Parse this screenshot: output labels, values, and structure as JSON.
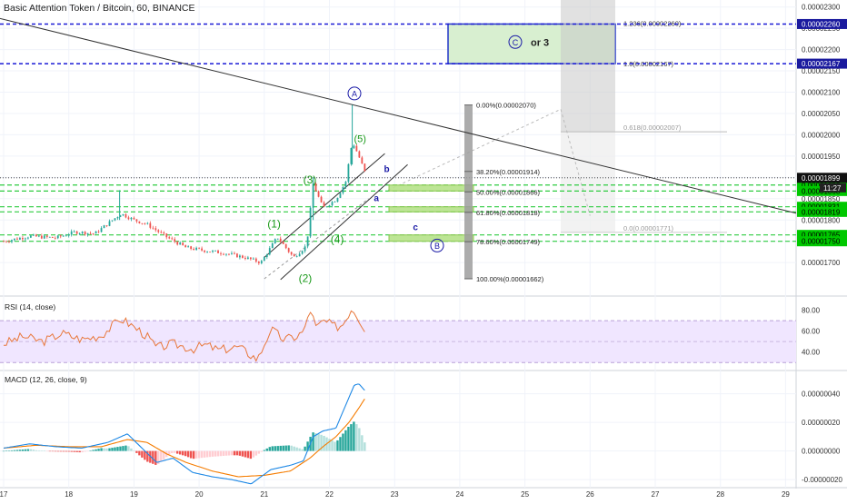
{
  "header": {
    "title": "Basic Attention Token / Bitcoin, 60, BINANCE"
  },
  "colors": {
    "up": "#26a69a",
    "down": "#ef5350",
    "wave": "#1a9a1a",
    "navy": "#1a1aa6",
    "dash_blue": "#1a1ad6",
    "dash_green": "#2ecc40",
    "rsi": "#e8773a",
    "macd": "#1e88e5",
    "signal": "#f57c00",
    "label_green": "#00c800"
  },
  "chart_data": [
    {
      "type": "candlestick",
      "title": "Basic Attention Token / Bitcoin, 60, BINANCE",
      "ylim": [
        1.63e-05,
        2.31e-05
      ],
      "x_ticks": [
        "17",
        "18",
        "19",
        "20",
        "21",
        "22",
        "23",
        "24",
        "25",
        "26",
        "27",
        "28",
        "29"
      ],
      "y_ticks": [
        "0.00002300",
        "0.00002250",
        "0.00002200",
        "0.00002150",
        "0.00002100",
        "0.00002050",
        "0.00002000",
        "0.00001950",
        "0.00001900",
        "0.00001850",
        "0.00001800",
        "0.00001750",
        "0.00001700"
      ],
      "series": [
        {
          "key": "close",
          "approx_close_path": [
            [
              17.0,
              1.75e-05
            ],
            [
              17.4,
              1.762e-05
            ],
            [
              17.8,
              1.758e-05
            ],
            [
              18.1,
              1.772e-05
            ],
            [
              18.4,
              1.768e-05
            ],
            [
              18.8,
              1.815e-05
            ],
            [
              19.0,
              1.8e-05
            ],
            [
              19.2,
              1.79e-05
            ],
            [
              19.5,
              1.76e-05
            ],
            [
              19.8,
              1.735e-05
            ],
            [
              20.1,
              1.728e-05
            ],
            [
              20.4,
              1.722e-05
            ],
            [
              20.7,
              1.712e-05
            ],
            [
              20.95,
              1.7e-05
            ],
            [
              21.2,
              1.76e-05
            ],
            [
              21.45,
              1.712e-05
            ],
            [
              21.65,
              1.74e-05
            ],
            [
              21.75,
              1.885e-05
            ],
            [
              21.9,
              1.828e-05
            ],
            [
              22.1,
              1.848e-05
            ],
            [
              22.25,
              1.89e-05
            ],
            [
              22.35,
              1.985e-05
            ],
            [
              22.45,
              1.95e-05
            ],
            [
              22.55,
              1.91e-05
            ]
          ]
        }
      ],
      "current_price": "0.00001899",
      "countdown": "11:27",
      "price_labels": [
        {
          "value": "0.00002260",
          "style": "blue"
        },
        {
          "value": "0.00002167",
          "style": "blue"
        },
        {
          "value": "0.00001882",
          "style": "green"
        },
        {
          "value": "0.00001868",
          "style": "green"
        },
        {
          "value": "0.00001831",
          "style": "green"
        },
        {
          "value": "0.00001819",
          "style": "green"
        },
        {
          "value": "0.00001765",
          "style": "green"
        },
        {
          "value": "0.00001750",
          "style": "green"
        }
      ],
      "fib_levels": [
        {
          "label": "0.00%(0.00002070)",
          "value": 2.07e-05
        },
        {
          "label": "38.20%(0.00001914)",
          "value": 1.914e-05
        },
        {
          "label": "50.00%(0.00001866)",
          "value": 1.866e-05
        },
        {
          "label": "61.80%(0.00001818)",
          "value": 1.818e-05
        },
        {
          "label": "78.60%(0.00001749)",
          "value": 1.749e-05
        },
        {
          "label": "100.00%(0.00001662)",
          "value": 1.662e-05
        }
      ],
      "ext_levels": [
        {
          "label": "1.236(0.00002260)",
          "value": 2.26e-05
        },
        {
          "label": "1.0(0.00002167)",
          "value": 2.167e-05
        },
        {
          "label": "0.618(0.00002007)",
          "value": 2.007e-05
        },
        {
          "label": "0.0(0.00001771)",
          "value": 1.771e-05
        }
      ],
      "wave_labels": [
        "(1)",
        "(2)",
        "(3)",
        "(4)",
        "(5)"
      ],
      "corrective_labels": [
        "a",
        "b",
        "c"
      ],
      "circled_labels": [
        "A",
        "B",
        "C"
      ],
      "target_text": "or 3"
    },
    {
      "type": "line",
      "title": "RSI (14, close)",
      "ylim": [
        25,
        90
      ],
      "y_ticks": [
        "80.00",
        "60.00",
        "40.00"
      ],
      "band": [
        30,
        70
      ],
      "series": [
        {
          "key": "rsi",
          "values": [
            [
              17.0,
              48
            ],
            [
              17.3,
              55
            ],
            [
              17.6,
              50
            ],
            [
              17.9,
              58
            ],
            [
              18.2,
              52
            ],
            [
              18.5,
              56
            ],
            [
              18.8,
              72
            ],
            [
              18.95,
              66
            ],
            [
              19.1,
              60
            ],
            [
              19.2,
              55
            ],
            [
              19.35,
              44
            ],
            [
              19.6,
              48
            ],
            [
              19.9,
              43
            ],
            [
              20.1,
              47
            ],
            [
              20.3,
              42
            ],
            [
              20.6,
              45
            ],
            [
              20.9,
              33
            ],
            [
              21.1,
              62
            ],
            [
              21.3,
              52
            ],
            [
              21.5,
              55
            ],
            [
              21.62,
              61
            ],
            [
              21.7,
              82
            ],
            [
              21.8,
              62
            ],
            [
              21.9,
              70
            ],
            [
              22.1,
              64
            ],
            [
              22.2,
              66
            ],
            [
              22.35,
              83
            ],
            [
              22.45,
              72
            ],
            [
              22.55,
              62
            ]
          ]
        }
      ]
    },
    {
      "type": "line",
      "title": "MACD (12, 26, close, 9)",
      "ylim": [
        -2.5e-07,
        5.5e-07
      ],
      "y_ticks": [
        "0.00000040",
        "0.00000020",
        "0.00000000",
        "-0.00000020"
      ],
      "series": [
        {
          "key": "macd",
          "values": [
            [
              17.0,
              2e-08
            ],
            [
              17.4,
              5e-08
            ],
            [
              17.8,
              3e-08
            ],
            [
              18.2,
              2e-08
            ],
            [
              18.6,
              6e-08
            ],
            [
              18.9,
              1.2e-07
            ],
            [
              19.1,
              3e-08
            ],
            [
              19.35,
              -8e-08
            ],
            [
              19.6,
              -5e-08
            ],
            [
              19.9,
              -1.5e-07
            ],
            [
              20.2,
              -1.8e-07
            ],
            [
              20.5,
              -2e-07
            ],
            [
              20.8,
              -2.3e-07
            ],
            [
              21.1,
              -1.3e-07
            ],
            [
              21.4,
              -1e-07
            ],
            [
              21.6,
              -7e-08
            ],
            [
              21.75,
              1e-07
            ],
            [
              21.9,
              1.4e-07
            ],
            [
              22.1,
              1.6e-07
            ],
            [
              22.25,
              3.2e-07
            ],
            [
              22.38,
              4.6e-07
            ],
            [
              22.45,
              4.7e-07
            ],
            [
              22.55,
              4.2e-07
            ]
          ]
        },
        {
          "key": "signal",
          "values": [
            [
              17.0,
              2e-08
            ],
            [
              17.5,
              4e-08
            ],
            [
              18.0,
              3e-08
            ],
            [
              18.5,
              3e-08
            ],
            [
              18.9,
              8e-08
            ],
            [
              19.2,
              6e-08
            ],
            [
              19.5,
              -2e-08
            ],
            [
              19.8,
              -8e-08
            ],
            [
              20.2,
              -1.4e-07
            ],
            [
              20.6,
              -1.8e-07
            ],
            [
              21.0,
              -1.7e-07
            ],
            [
              21.4,
              -1.4e-07
            ],
            [
              21.7,
              -5e-08
            ],
            [
              21.9,
              3e-08
            ],
            [
              22.1,
              1e-07
            ],
            [
              22.3,
              2e-07
            ],
            [
              22.45,
              3e-07
            ],
            [
              22.55,
              3.7e-07
            ]
          ]
        }
      ]
    }
  ]
}
